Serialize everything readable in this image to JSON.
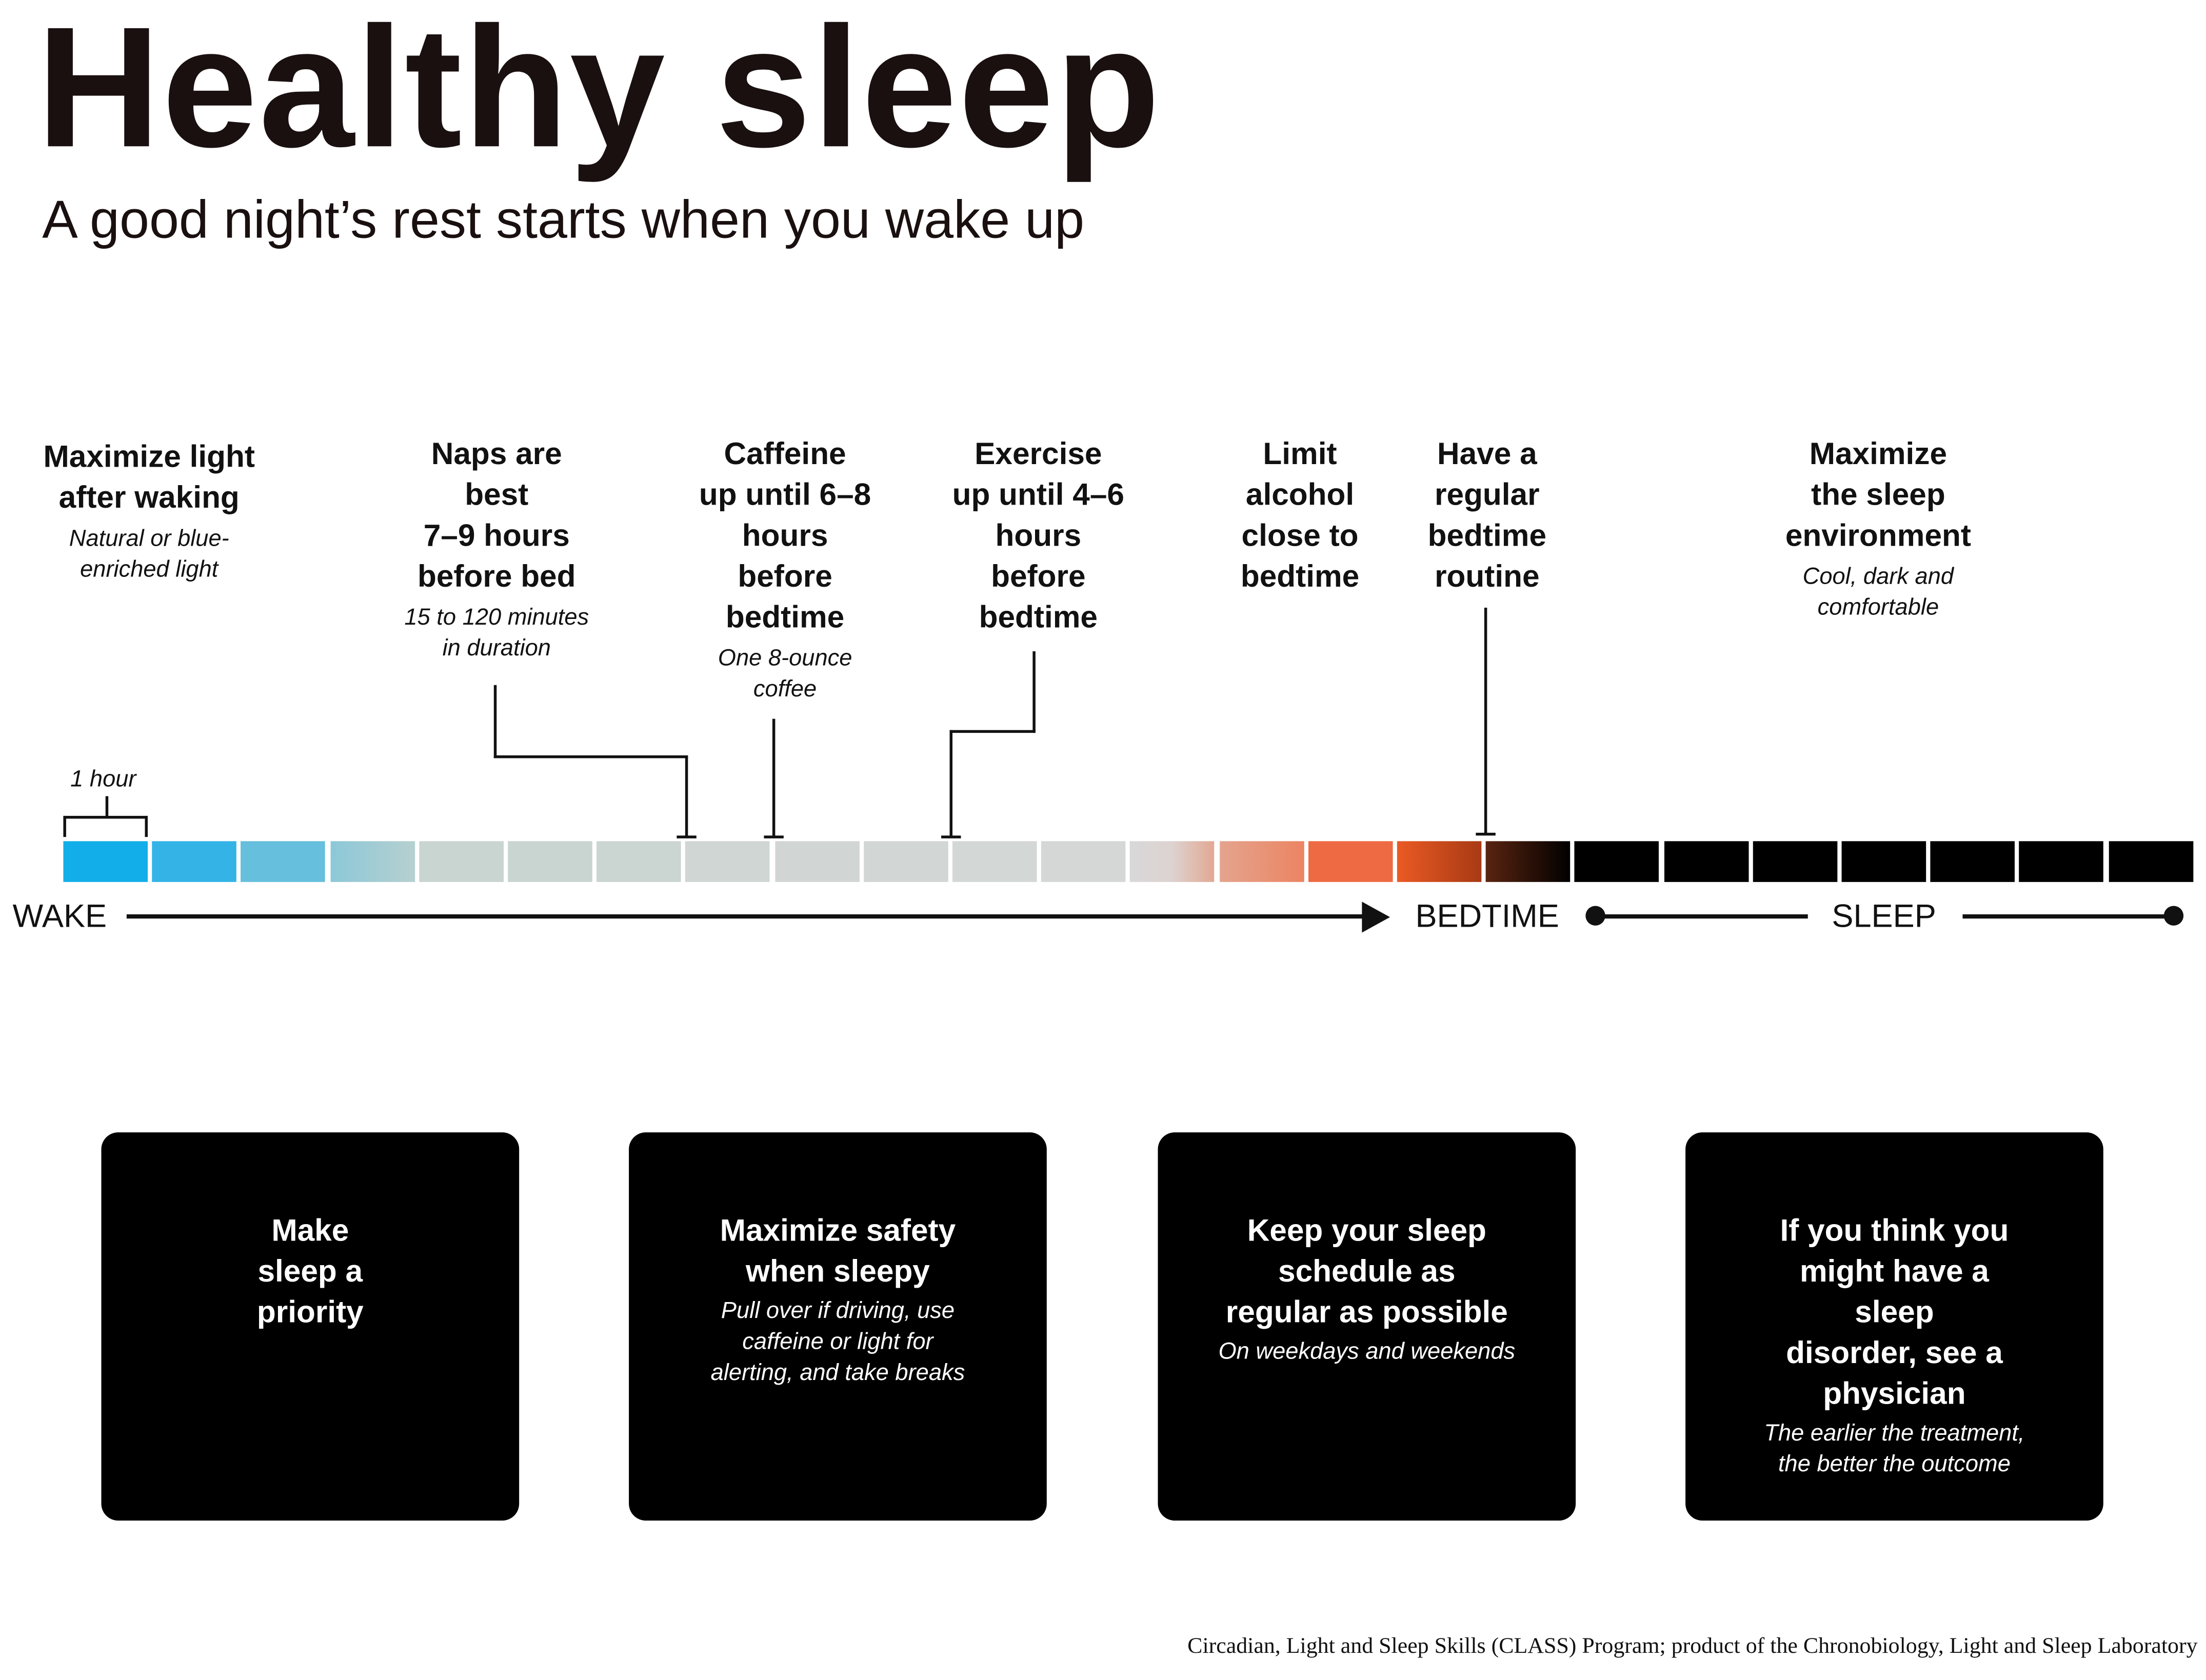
{
  "title": "Healthy sleep",
  "subtitle": "A good night’s rest starts when you wake up",
  "tips": [
    {
      "heading": [
        "Maximize light",
        "after waking"
      ],
      "sub": [
        "Natural or blue-",
        "enriched light"
      ]
    },
    {
      "heading": [
        "Naps are",
        "best",
        "7–9 hours",
        "before bed"
      ],
      "sub": [
        "15 to 120 minutes",
        "in duration"
      ]
    },
    {
      "heading": [
        "Caffeine",
        "up until 6–8",
        "hours",
        "before",
        "bedtime"
      ],
      "sub": [
        "One 8-ounce",
        "coffee"
      ]
    },
    {
      "heading": [
        "Exercise",
        "up until 4–6",
        "hours",
        "before",
        "bedtime"
      ],
      "sub": []
    },
    {
      "heading": [
        "Limit",
        "alcohol",
        "close to",
        "bedtime"
      ],
      "sub": []
    },
    {
      "heading": [
        "Have a",
        "regular",
        "bedtime",
        "routine"
      ],
      "sub": []
    },
    {
      "heading": [
        "Maximize",
        "the sleep",
        "environment"
      ],
      "sub": [
        "Cool, dark and",
        "comfortable"
      ]
    }
  ],
  "timeline": {
    "unit_label": "1 hour",
    "wake": "WAKE",
    "bedtime": "BEDTIME",
    "sleep": "SLEEP",
    "segments": [
      "#12aee9",
      "#34b4e6",
      "#66bfdc",
      "linear-gradient(90deg,#8cc8d8,#b6d0d0)",
      "#c8d5d0",
      "#c9d5d1",
      "#cbd5d2",
      "#cfd6d4",
      "#d1d6d5",
      "#d2d6d5",
      "#d3d7d6",
      "#d5d7d7",
      "linear-gradient(90deg,#d8d8da,#ddd3d0 50%,#e2a893)",
      "linear-gradient(90deg,#e4a48e,#ec8462)",
      "#ee6a42",
      "linear-gradient(90deg,#ea5a24,#a83a14)",
      "linear-gradient(90deg,#5a2410,#000)",
      "#000",
      "#000",
      "#000",
      "#000",
      "#000",
      "#000",
      "#000"
    ]
  },
  "boxes": [
    {
      "heading": [
        "Make",
        "sleep a",
        "priority"
      ],
      "sub": []
    },
    {
      "heading": [
        "Maximize safety",
        "when sleepy"
      ],
      "sub": [
        "Pull over if driving, use",
        "caffeine or light for",
        "alerting, and take breaks"
      ]
    },
    {
      "heading": [
        "Keep your sleep",
        "schedule as",
        "regular as possible"
      ],
      "sub": [
        "On weekdays and weekends"
      ]
    },
    {
      "heading": [
        "If you think you",
        "might have a",
        "sleep",
        "disorder, see a",
        "physician"
      ],
      "sub": [
        "The earlier the treatment,",
        "the better the outcome"
      ]
    }
  ],
  "footer": "Circadian, Light and Sleep Skills (CLASS) Program; product of the Chronobiology, Light and Sleep Laboratory"
}
